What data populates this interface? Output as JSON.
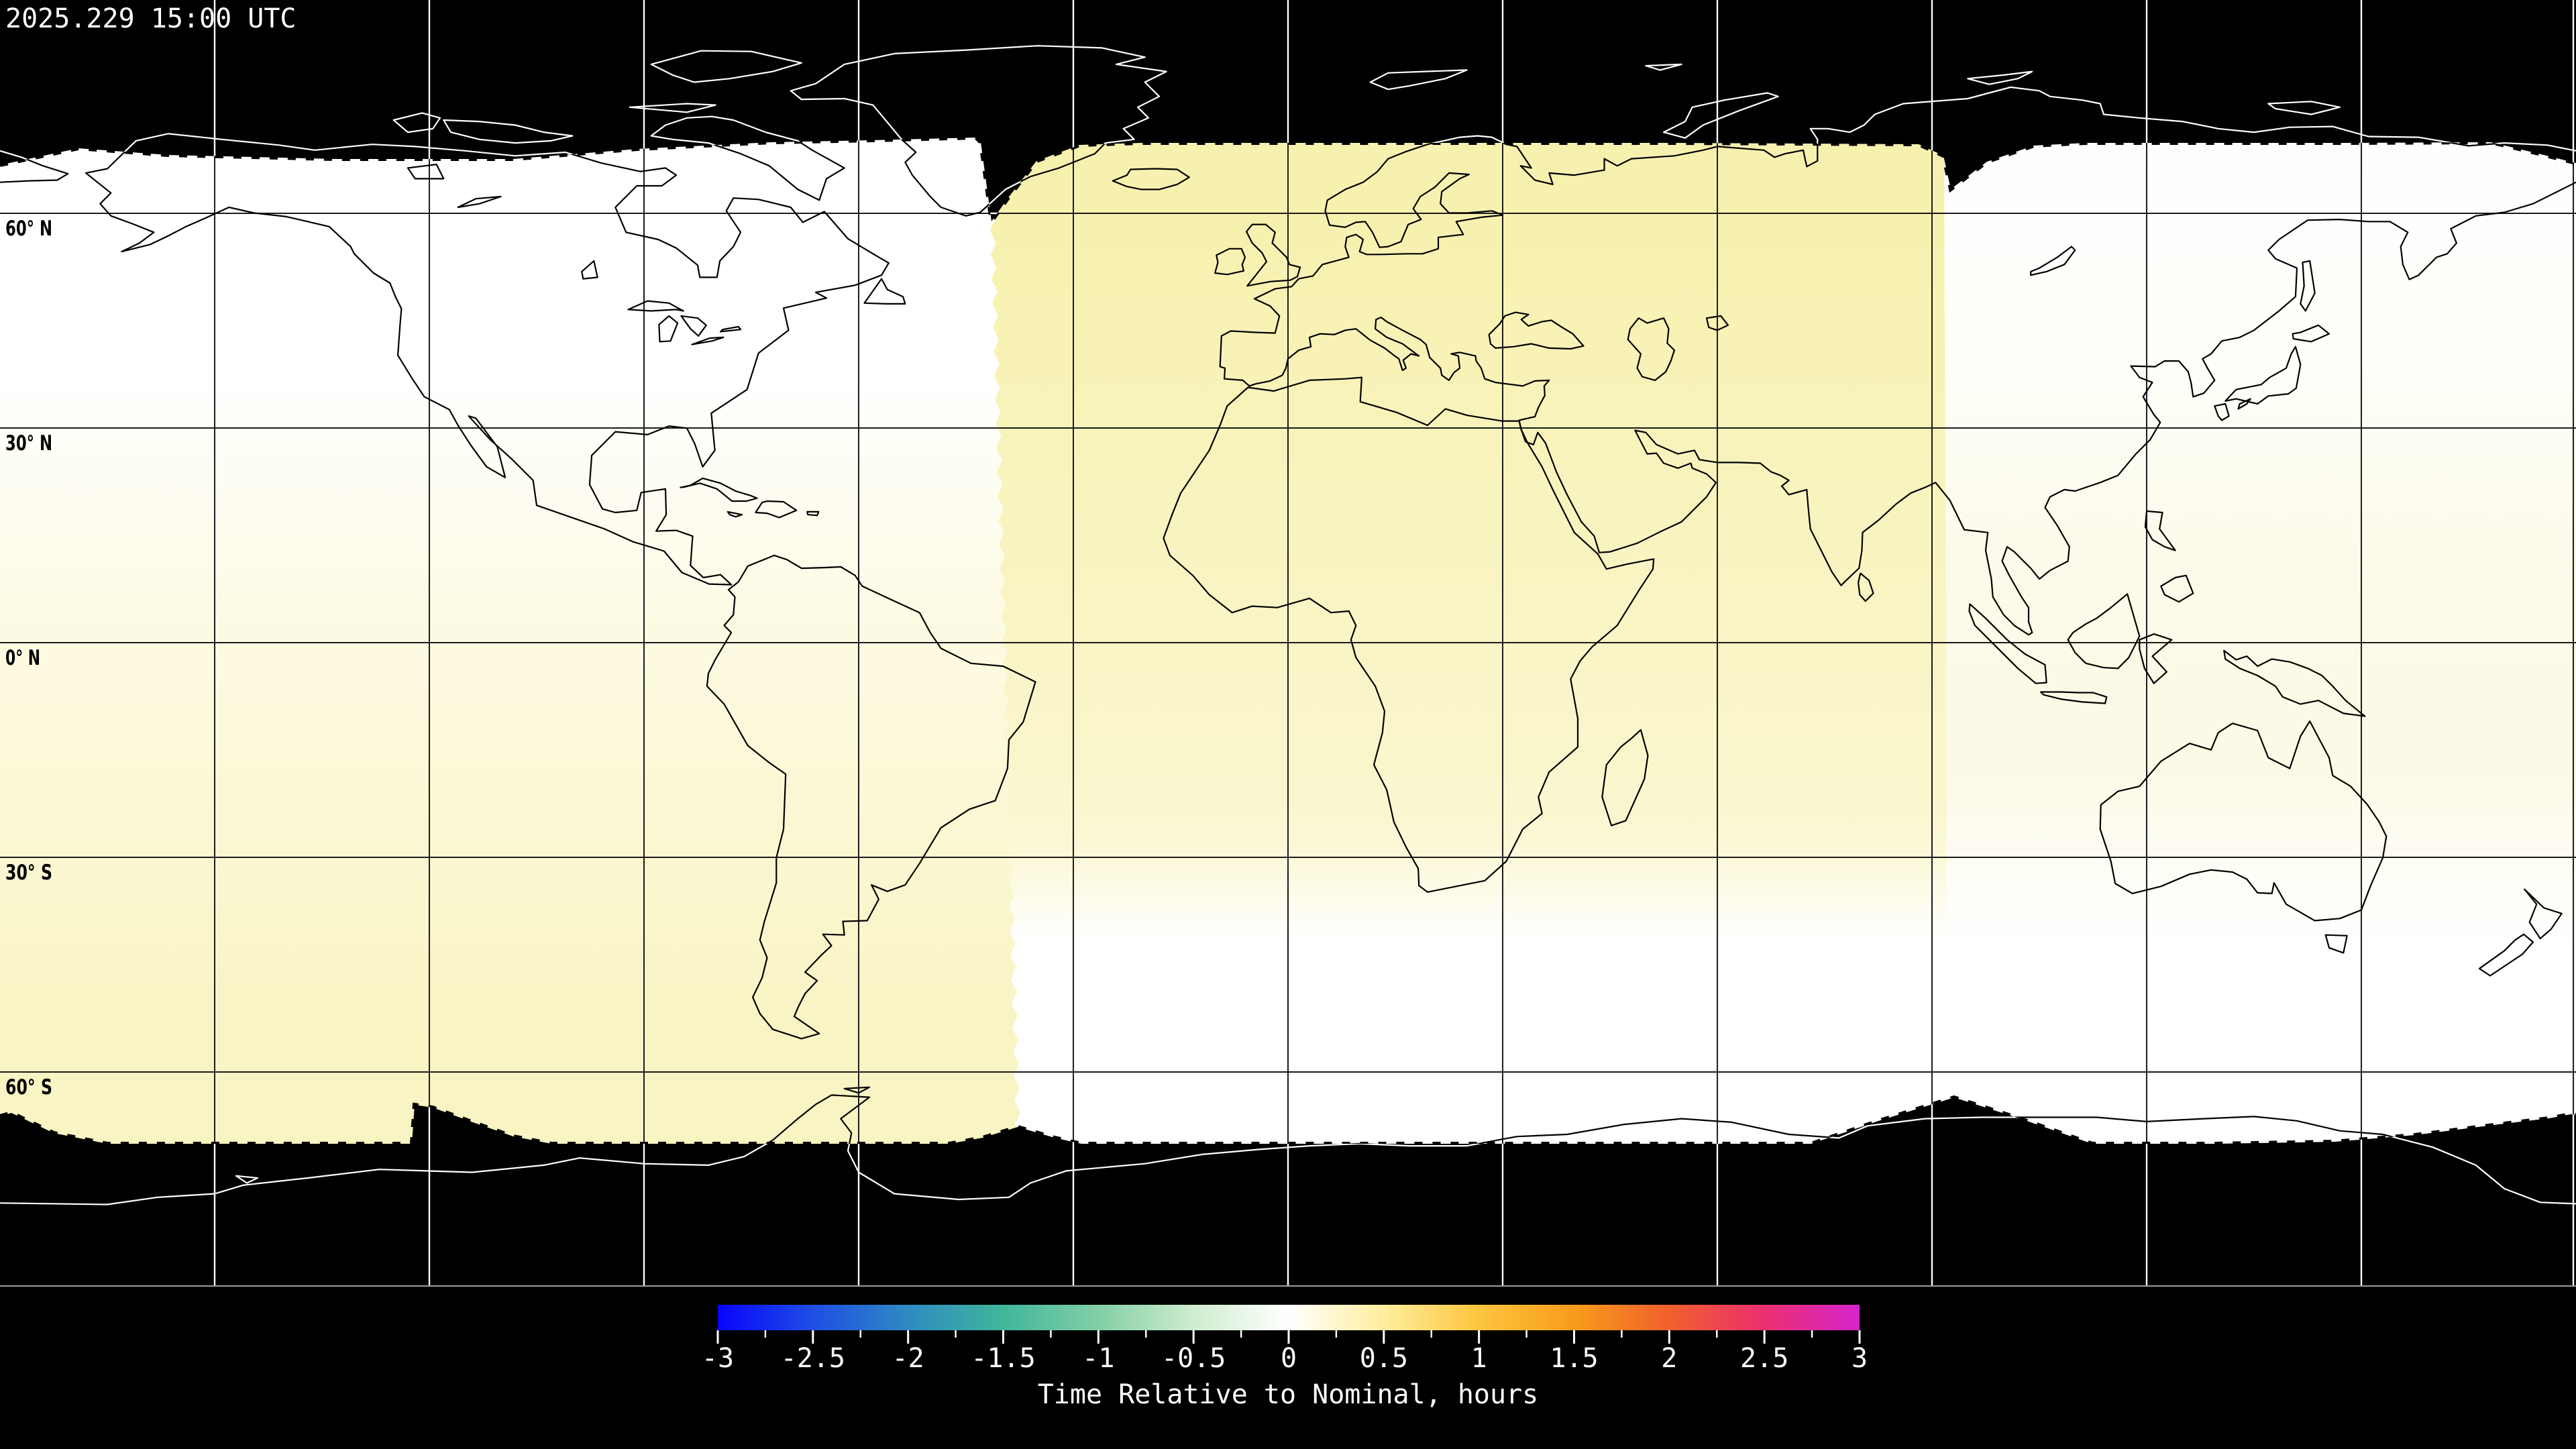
{
  "title_overlay": {
    "timestamp": "2025.229 15:00 UTC"
  },
  "map": {
    "latitude_labels": [
      "60° N",
      "30° N",
      "0° N",
      "30° S",
      "60° S"
    ],
    "gridline_interval_degrees": 30,
    "colors": {
      "background": "#000000",
      "nominal_white": "#ffffff",
      "swath_tint_strong": "#f7f1ae",
      "swath_tint_soft": "#f8f3c0",
      "swath_tint_faint": "#fcfae6",
      "coastline_on_data": "#000000",
      "coastline_on_void": "#ffffff",
      "gridline_on_data": "#1c1c1c",
      "gridline_on_void": "#ffffff",
      "frame_line": "#9a9a9a",
      "timestamp_text": "#ffffff",
      "latitude_label_text": "#000000",
      "colorbar_text": "#ffffff"
    }
  },
  "colorbar": {
    "label": "Time Relative to Nominal, hours",
    "min_hours": -3,
    "max_hours": 3,
    "minor_tick_step_hours": 0.25,
    "major_tick_step_hours": 0.5,
    "tick_labels": [
      "-3",
      "-2.5",
      "-2",
      "-1.5",
      "-1",
      "-0.5",
      "0",
      "0.5",
      "1",
      "1.5",
      "2",
      "2.5",
      "3"
    ],
    "gradient_stops": [
      {
        "value": -3.0,
        "color": "#0805fa"
      },
      {
        "value": -2.5,
        "color": "#1e4ee4"
      },
      {
        "value": -2.0,
        "color": "#2f8ac2"
      },
      {
        "value": -1.5,
        "color": "#41b69a"
      },
      {
        "value": -1.0,
        "color": "#82cfa5"
      },
      {
        "value": -0.5,
        "color": "#cfeccf"
      },
      {
        "value": 0.0,
        "color": "#ffffff"
      },
      {
        "value": 0.5,
        "color": "#ffee9d"
      },
      {
        "value": 1.0,
        "color": "#fdc53e"
      },
      {
        "value": 1.5,
        "color": "#f89c1b"
      },
      {
        "value": 2.0,
        "color": "#f1602c"
      },
      {
        "value": 2.5,
        "color": "#ea2f70"
      },
      {
        "value": 3.0,
        "color": "#d424cc"
      }
    ]
  },
  "chart_data": {
    "type": "heatmap",
    "title": "Time Relative to Nominal, hours",
    "scale_range_hours": [
      -3,
      3
    ],
    "legend_position": "bottom",
    "depicted_values": [
      {
        "region": "western swath north (Americas, ~180W-42W, north of equator)",
        "approx_hours": 0.0
      },
      {
        "region": "western swath south (Americas, ~180W-42W, south of equator)",
        "approx_hours": 0.4
      },
      {
        "region": "central swath north (Europe/Africa/Asia, ~42W-92E, north of ~25S)",
        "approx_hours": 0.45
      },
      {
        "region": "central swath south (~42W-92E, south of ~25S)",
        "approx_hours": 0.0
      },
      {
        "region": "eastern swath (E Asia/Australia, ~92E-180E)",
        "approx_hours": 0.1
      }
    ],
    "no_data_regions": [
      "north polar band (black, poleward of ~70N-78N, scalloped edge)",
      "south polar band (black, poleward of ~66S-70S, scalloped edge)"
    ]
  }
}
